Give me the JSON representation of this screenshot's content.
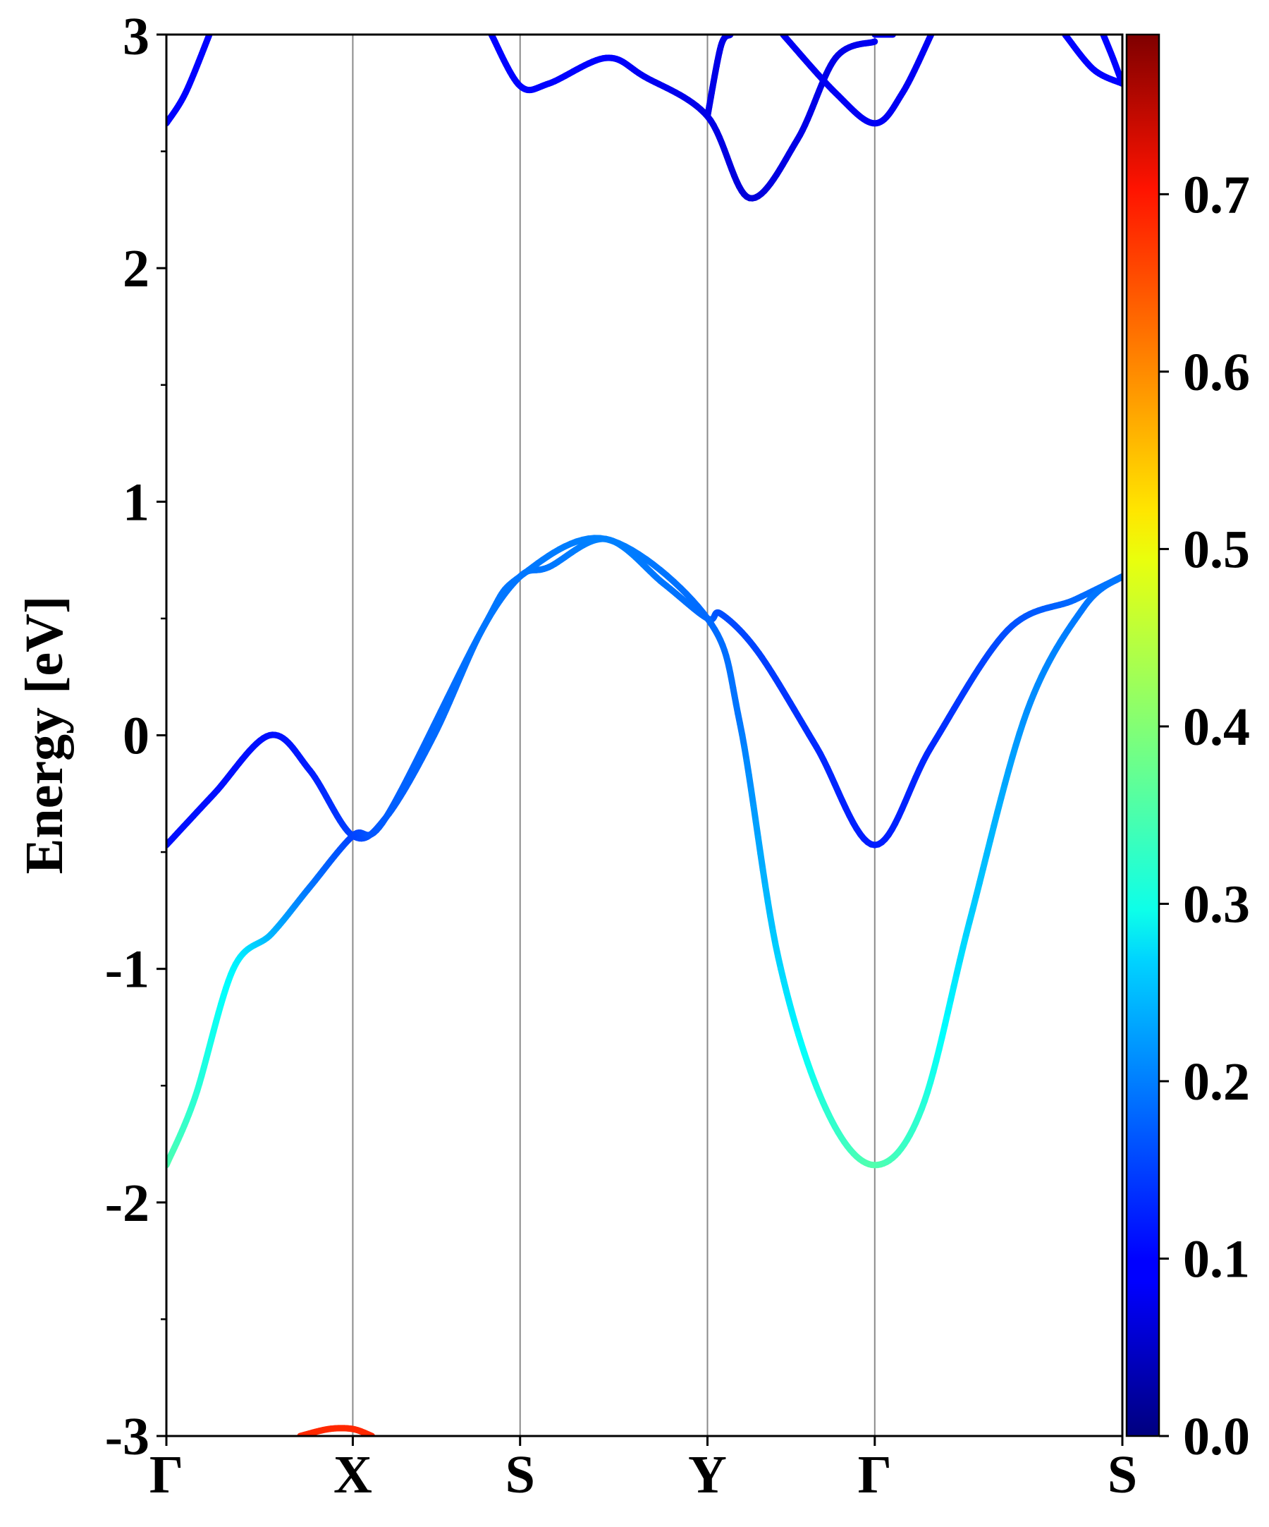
{
  "chart_data": {
    "type": "line",
    "title": "",
    "ylabel": "Energy [eV]",
    "xlabel": "",
    "ylim": [
      -3,
      3
    ],
    "y_ticks": [
      "3",
      "2",
      "1",
      "0",
      "-1",
      "-2",
      "-3"
    ],
    "y_tick_values": [
      3,
      2,
      1,
      0,
      -1,
      -2,
      -3
    ],
    "x_ticks": [
      "Γ",
      "X",
      "S",
      "Y",
      "Γ",
      "S"
    ],
    "x_tick_positions": [
      0,
      0.195,
      0.37,
      0.566,
      0.741,
      1.0
    ],
    "grid": "vertical lines at high-symmetry points",
    "colorbar": {
      "colormap": "jet",
      "range": [
        0.0,
        0.79
      ],
      "ticks": [
        "0.0",
        "0.1",
        "0.2",
        "0.3",
        "0.4",
        "0.5",
        "0.6",
        "0.7"
      ],
      "tick_values": [
        0.0,
        0.1,
        0.2,
        0.3,
        0.4,
        0.5,
        0.6,
        0.7
      ]
    },
    "series": [
      {
        "band": "valence-upper",
        "x": [
          0,
          0.05,
          0.108,
          0.15,
          0.195,
          0.23,
          0.28,
          0.33,
          0.37,
          0.4,
          0.46,
          0.52,
          0.566,
          0.58,
          0.62,
          0.68,
          0.741,
          0.8,
          0.88,
          0.95,
          1.0
        ],
        "y": [
          -0.47,
          -0.25,
          0.0,
          -0.15,
          -0.43,
          -0.35,
          0.0,
          0.45,
          0.68,
          0.72,
          0.84,
          0.65,
          0.5,
          0.52,
          0.35,
          -0.05,
          -0.47,
          -0.05,
          0.45,
          0.58,
          0.68
        ],
        "weight": [
          0.11,
          0.11,
          0.11,
          0.12,
          0.15,
          0.17,
          0.18,
          0.19,
          0.19,
          0.19,
          0.2,
          0.19,
          0.18,
          0.16,
          0.15,
          0.13,
          0.12,
          0.13,
          0.16,
          0.18,
          0.19
        ]
      },
      {
        "band": "valence-lower",
        "x": [
          0,
          0.03,
          0.07,
          0.11,
          0.15,
          0.195,
          0.23,
          0.33,
          0.37,
          0.46,
          0.566,
          0.6,
          0.64,
          0.69,
          0.741,
          0.79,
          0.84,
          0.9,
          0.96,
          1.0
        ],
        "y": [
          -1.84,
          -1.55,
          -1.0,
          -0.85,
          -0.65,
          -0.43,
          -0.35,
          0.45,
          0.68,
          0.84,
          0.5,
          0.05,
          -0.95,
          -1.6,
          -1.84,
          -1.6,
          -0.8,
          0.1,
          0.55,
          0.68
        ],
        "weight": [
          0.36,
          0.33,
          0.29,
          0.24,
          0.19,
          0.15,
          0.17,
          0.19,
          0.19,
          0.2,
          0.18,
          0.19,
          0.26,
          0.33,
          0.36,
          0.33,
          0.26,
          0.21,
          0.19,
          0.19
        ]
      },
      {
        "band": "conduction-1",
        "x": [
          0,
          0.02,
          0.045
        ],
        "y": [
          2.62,
          2.75,
          3.0
        ],
        "weight": [
          0.1,
          0.1,
          0.1
        ]
      },
      {
        "band": "conduction-2",
        "x": [
          0.34,
          0.37,
          0.4,
          0.46,
          0.5,
          0.566,
          0.61,
          0.66,
          0.7,
          0.741
        ],
        "y": [
          3.0,
          2.78,
          2.79,
          2.9,
          2.82,
          2.65,
          2.3,
          2.55,
          2.9,
          2.97
        ],
        "weight": [
          0.1,
          0.1,
          0.1,
          0.1,
          0.09,
          0.08,
          0.07,
          0.08,
          0.08,
          0.09
        ]
      },
      {
        "band": "conduction-3",
        "x": [
          0.566,
          0.58,
          0.59
        ],
        "y": [
          2.65,
          2.95,
          3.0
        ],
        "weight": [
          0.08,
          0.08,
          0.08
        ]
      },
      {
        "band": "conduction-4",
        "x": [
          0.645,
          0.7,
          0.741,
          0.77,
          0.8
        ],
        "y": [
          3.0,
          2.75,
          2.62,
          2.75,
          3.0
        ],
        "weight": [
          0.09,
          0.09,
          0.09,
          0.09,
          0.09
        ]
      },
      {
        "band": "conduction-5",
        "x": [
          0.741,
          0.76
        ],
        "y": [
          3.0,
          3.0
        ],
        "weight": [
          0.09,
          0.09
        ]
      },
      {
        "band": "conduction-6",
        "x": [
          0.94,
          0.97,
          1.0
        ],
        "y": [
          3.0,
          2.85,
          2.79
        ],
        "weight": [
          0.1,
          0.1,
          0.1
        ]
      },
      {
        "band": "conduction-7",
        "x": [
          0.98,
          0.99,
          1.0
        ],
        "y": [
          3.0,
          2.9,
          2.79
        ],
        "weight": [
          0.1,
          0.1,
          0.1
        ]
      },
      {
        "band": "deep-band",
        "x": [
          0.14,
          0.17,
          0.195,
          0.215
        ],
        "y": [
          -3.0,
          -2.97,
          -2.97,
          -3.0
        ],
        "weight": [
          0.66,
          0.66,
          0.66,
          0.66
        ]
      }
    ]
  }
}
